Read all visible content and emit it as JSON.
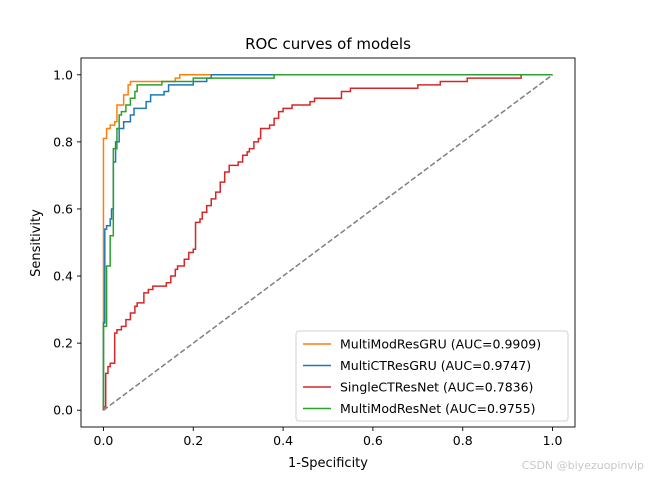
{
  "chart_data": {
    "type": "line",
    "title": "ROC curves of models",
    "xlabel": "1-Specificity",
    "ylabel": "Sensitivity",
    "xlim": [
      -0.05,
      1.05
    ],
    "ylim": [
      -0.05,
      1.05
    ],
    "xticks": [
      0.0,
      0.2,
      0.4,
      0.6,
      0.8,
      1.0
    ],
    "yticks": [
      0.0,
      0.2,
      0.4,
      0.6,
      0.8,
      1.0
    ],
    "tick_labels": [
      "0.0",
      "0.2",
      "0.4",
      "0.6",
      "0.8",
      "1.0"
    ],
    "legend_position": "lower-right",
    "diagonal": {
      "name": "chance",
      "color": "#7f7f7f",
      "style": "dashed"
    },
    "series": [
      {
        "name": "MultiModResGRU",
        "auc": "MultiModResGRU (AUC=0.9909)",
        "color": "#ff7f0e",
        "points": [
          [
            0,
            0
          ],
          [
            0,
            0.26
          ],
          [
            0,
            0.81
          ],
          [
            0.007,
            0.81
          ],
          [
            0.007,
            0.84
          ],
          [
            0.015,
            0.84
          ],
          [
            0.015,
            0.85
          ],
          [
            0.025,
            0.85
          ],
          [
            0.025,
            0.86
          ],
          [
            0.03,
            0.86
          ],
          [
            0.03,
            0.91
          ],
          [
            0.045,
            0.91
          ],
          [
            0.045,
            0.94
          ],
          [
            0.055,
            0.94
          ],
          [
            0.055,
            0.97
          ],
          [
            0.06,
            0.97
          ],
          [
            0.06,
            0.98
          ],
          [
            0.16,
            0.98
          ],
          [
            0.16,
            0.99
          ],
          [
            0.17,
            0.99
          ],
          [
            0.17,
            1.0
          ],
          [
            1.0,
            1.0
          ]
        ]
      },
      {
        "name": "MultiCTResGRU",
        "auc": "MultiCTResGRU (AUC=0.9747)",
        "color": "#1f77b4",
        "points": [
          [
            0,
            0
          ],
          [
            0,
            0.26
          ],
          [
            0.003,
            0.26
          ],
          [
            0.003,
            0.54
          ],
          [
            0.007,
            0.54
          ],
          [
            0.007,
            0.55
          ],
          [
            0.015,
            0.55
          ],
          [
            0.015,
            0.57
          ],
          [
            0.018,
            0.57
          ],
          [
            0.018,
            0.6
          ],
          [
            0.022,
            0.6
          ],
          [
            0.022,
            0.74
          ],
          [
            0.027,
            0.74
          ],
          [
            0.027,
            0.8
          ],
          [
            0.035,
            0.8
          ],
          [
            0.035,
            0.84
          ],
          [
            0.045,
            0.84
          ],
          [
            0.045,
            0.86
          ],
          [
            0.06,
            0.86
          ],
          [
            0.06,
            0.88
          ],
          [
            0.068,
            0.88
          ],
          [
            0.068,
            0.9
          ],
          [
            0.095,
            0.9
          ],
          [
            0.095,
            0.92
          ],
          [
            0.105,
            0.92
          ],
          [
            0.105,
            0.94
          ],
          [
            0.135,
            0.94
          ],
          [
            0.135,
            0.95
          ],
          [
            0.145,
            0.95
          ],
          [
            0.145,
            0.97
          ],
          [
            0.2,
            0.97
          ],
          [
            0.2,
            0.98
          ],
          [
            0.23,
            0.98
          ],
          [
            0.23,
            0.99
          ],
          [
            0.24,
            0.99
          ],
          [
            0.24,
            1.0
          ],
          [
            1.0,
            1.0
          ]
        ]
      },
      {
        "name": "SingleCTResNet",
        "auc": "SingleCTResNet (AUC=0.7836)",
        "color": "#d62728",
        "points": [
          [
            0,
            0
          ],
          [
            0,
            0.01
          ],
          [
            0.005,
            0.01
          ],
          [
            0.005,
            0.11
          ],
          [
            0.01,
            0.11
          ],
          [
            0.01,
            0.13
          ],
          [
            0.015,
            0.13
          ],
          [
            0.015,
            0.14
          ],
          [
            0.025,
            0.14
          ],
          [
            0.025,
            0.23
          ],
          [
            0.03,
            0.23
          ],
          [
            0.03,
            0.24
          ],
          [
            0.04,
            0.24
          ],
          [
            0.04,
            0.25
          ],
          [
            0.05,
            0.25
          ],
          [
            0.05,
            0.27
          ],
          [
            0.06,
            0.27
          ],
          [
            0.06,
            0.29
          ],
          [
            0.07,
            0.29
          ],
          [
            0.07,
            0.31
          ],
          [
            0.075,
            0.31
          ],
          [
            0.075,
            0.32
          ],
          [
            0.09,
            0.32
          ],
          [
            0.09,
            0.35
          ],
          [
            0.1,
            0.35
          ],
          [
            0.1,
            0.36
          ],
          [
            0.11,
            0.36
          ],
          [
            0.11,
            0.37
          ],
          [
            0.14,
            0.37
          ],
          [
            0.14,
            0.38
          ],
          [
            0.15,
            0.38
          ],
          [
            0.15,
            0.4
          ],
          [
            0.16,
            0.4
          ],
          [
            0.16,
            0.42
          ],
          [
            0.165,
            0.42
          ],
          [
            0.165,
            0.43
          ],
          [
            0.18,
            0.43
          ],
          [
            0.18,
            0.45
          ],
          [
            0.19,
            0.45
          ],
          [
            0.19,
            0.47
          ],
          [
            0.2,
            0.47
          ],
          [
            0.2,
            0.48
          ],
          [
            0.205,
            0.48
          ],
          [
            0.205,
            0.56
          ],
          [
            0.215,
            0.56
          ],
          [
            0.215,
            0.57
          ],
          [
            0.22,
            0.57
          ],
          [
            0.22,
            0.59
          ],
          [
            0.23,
            0.59
          ],
          [
            0.23,
            0.61
          ],
          [
            0.24,
            0.61
          ],
          [
            0.24,
            0.63
          ],
          [
            0.25,
            0.63
          ],
          [
            0.25,
            0.65
          ],
          [
            0.26,
            0.65
          ],
          [
            0.26,
            0.68
          ],
          [
            0.27,
            0.68
          ],
          [
            0.27,
            0.71
          ],
          [
            0.28,
            0.71
          ],
          [
            0.28,
            0.73
          ],
          [
            0.3,
            0.73
          ],
          [
            0.3,
            0.74
          ],
          [
            0.31,
            0.74
          ],
          [
            0.31,
            0.76
          ],
          [
            0.32,
            0.76
          ],
          [
            0.32,
            0.77
          ],
          [
            0.325,
            0.77
          ],
          [
            0.325,
            0.78
          ],
          [
            0.335,
            0.78
          ],
          [
            0.335,
            0.8
          ],
          [
            0.345,
            0.8
          ],
          [
            0.345,
            0.81
          ],
          [
            0.35,
            0.81
          ],
          [
            0.35,
            0.84
          ],
          [
            0.37,
            0.84
          ],
          [
            0.37,
            0.85
          ],
          [
            0.38,
            0.85
          ],
          [
            0.38,
            0.87
          ],
          [
            0.39,
            0.87
          ],
          [
            0.39,
            0.89
          ],
          [
            0.4,
            0.89
          ],
          [
            0.4,
            0.9
          ],
          [
            0.42,
            0.9
          ],
          [
            0.42,
            0.91
          ],
          [
            0.46,
            0.91
          ],
          [
            0.46,
            0.92
          ],
          [
            0.47,
            0.92
          ],
          [
            0.47,
            0.93
          ],
          [
            0.53,
            0.93
          ],
          [
            0.53,
            0.95
          ],
          [
            0.55,
            0.95
          ],
          [
            0.55,
            0.96
          ],
          [
            0.7,
            0.96
          ],
          [
            0.7,
            0.97
          ],
          [
            0.75,
            0.97
          ],
          [
            0.75,
            0.98
          ],
          [
            0.81,
            0.98
          ],
          [
            0.81,
            0.99
          ],
          [
            0.93,
            0.99
          ],
          [
            0.93,
            1.0
          ],
          [
            1.0,
            1.0
          ]
        ]
      },
      {
        "name": "MultiModResNet",
        "auc": "MultiModResNet (AUC=0.9755)",
        "color": "#2ca02c",
        "points": [
          [
            0,
            0
          ],
          [
            0,
            0.25
          ],
          [
            0.007,
            0.25
          ],
          [
            0.007,
            0.43
          ],
          [
            0.015,
            0.43
          ],
          [
            0.015,
            0.52
          ],
          [
            0.022,
            0.52
          ],
          [
            0.022,
            0.78
          ],
          [
            0.03,
            0.78
          ],
          [
            0.03,
            0.84
          ],
          [
            0.035,
            0.84
          ],
          [
            0.035,
            0.88
          ],
          [
            0.04,
            0.88
          ],
          [
            0.04,
            0.89
          ],
          [
            0.05,
            0.89
          ],
          [
            0.05,
            0.91
          ],
          [
            0.06,
            0.91
          ],
          [
            0.06,
            0.93
          ],
          [
            0.07,
            0.93
          ],
          [
            0.07,
            0.95
          ],
          [
            0.075,
            0.95
          ],
          [
            0.075,
            0.97
          ],
          [
            0.13,
            0.97
          ],
          [
            0.13,
            0.98
          ],
          [
            0.2,
            0.98
          ],
          [
            0.2,
            0.99
          ],
          [
            0.38,
            0.99
          ],
          [
            0.38,
            1.0
          ],
          [
            1.0,
            1.0
          ]
        ]
      }
    ]
  },
  "watermark": "CSDN @biyezuopinvip"
}
